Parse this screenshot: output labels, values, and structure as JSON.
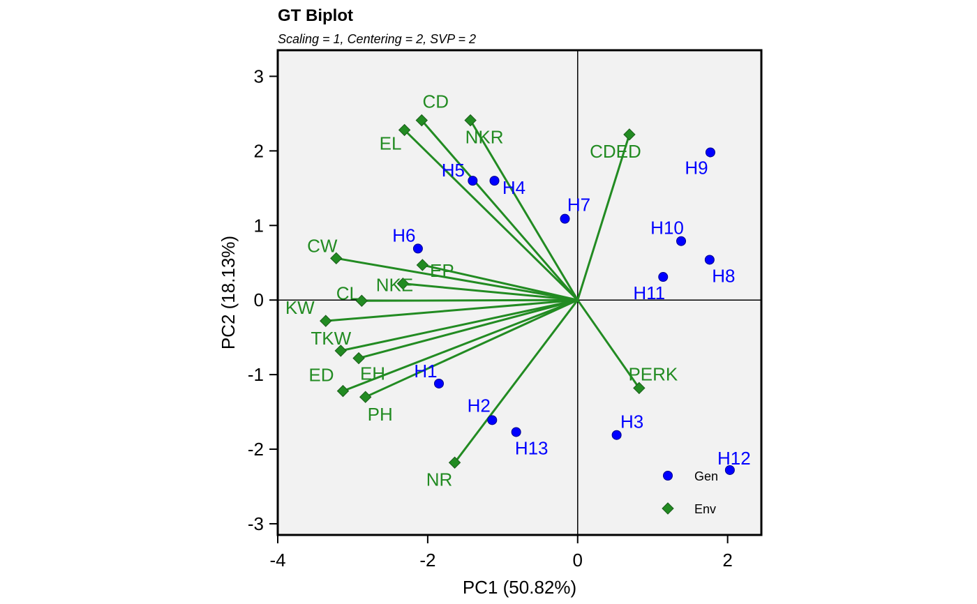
{
  "chart_data": {
    "type": "scatter",
    "title": "GT Biplot",
    "subtitle": "Scaling = 1, Centering = 2, SVP = 2",
    "xlabel": "PC1 (50.82%)",
    "ylabel": "PC2 (18.13%)",
    "xlim": [
      -4,
      2.45
    ],
    "ylim": [
      -3.15,
      3.35
    ],
    "xticks": [
      -4,
      -2,
      0,
      2
    ],
    "yticks": [
      -3,
      -2,
      -1,
      0,
      1,
      2,
      3
    ],
    "grid": false,
    "reference_lines": {
      "x": 0,
      "y": 0
    },
    "legend_position": "bottom-right",
    "colors": {
      "gen": "#0000ff",
      "env": "#228b22",
      "panel": "#f2f2f2"
    },
    "series": [
      {
        "name": "Gen",
        "marker": "circle",
        "points": [
          {
            "label": "H1",
            "x": -1.85,
            "y": -1.12
          },
          {
            "label": "H2",
            "x": -1.14,
            "y": -1.61
          },
          {
            "label": "H3",
            "x": 0.52,
            "y": -1.81
          },
          {
            "label": "H4",
            "x": -1.11,
            "y": 1.6
          },
          {
            "label": "H5",
            "x": -1.4,
            "y": 1.6
          },
          {
            "label": "H6",
            "x": -2.13,
            "y": 0.69
          },
          {
            "label": "H7",
            "x": -0.17,
            "y": 1.09
          },
          {
            "label": "H8",
            "x": 1.76,
            "y": 0.54
          },
          {
            "label": "H9",
            "x": 1.77,
            "y": 1.98
          },
          {
            "label": "H10",
            "x": 1.38,
            "y": 0.79
          },
          {
            "label": "H11",
            "x": 1.14,
            "y": 0.31
          },
          {
            "label": "H12",
            "x": 2.03,
            "y": -2.28
          },
          {
            "label": "H13",
            "x": -0.82,
            "y": -1.77
          }
        ]
      },
      {
        "name": "Env",
        "marker": "diamond",
        "vectors_from_origin": true,
        "points": [
          {
            "label": "CD",
            "x": -2.08,
            "y": 2.41
          },
          {
            "label": "EL",
            "x": -2.31,
            "y": 2.28
          },
          {
            "label": "NKR",
            "x": -1.43,
            "y": 2.41
          },
          {
            "label": "CDED",
            "x": 0.69,
            "y": 2.22
          },
          {
            "label": "CW",
            "x": -3.22,
            "y": 0.56
          },
          {
            "label": "EP",
            "x": -2.07,
            "y": 0.47
          },
          {
            "label": "CL",
            "x": -2.88,
            "y": -0.01
          },
          {
            "label": "NKE",
            "x": -2.33,
            "y": 0.22
          },
          {
            "label": "KW",
            "x": -3.36,
            "y": -0.28
          },
          {
            "label": "TKW",
            "x": -3.16,
            "y": -0.68
          },
          {
            "label": "EH",
            "x": -2.92,
            "y": -0.78
          },
          {
            "label": "ED",
            "x": -3.13,
            "y": -1.22
          },
          {
            "label": "PH",
            "x": -2.83,
            "y": -1.3
          },
          {
            "label": "NR",
            "x": -1.64,
            "y": -2.18
          },
          {
            "label": "PERK",
            "x": 0.82,
            "y": -1.18
          }
        ]
      }
    ]
  }
}
